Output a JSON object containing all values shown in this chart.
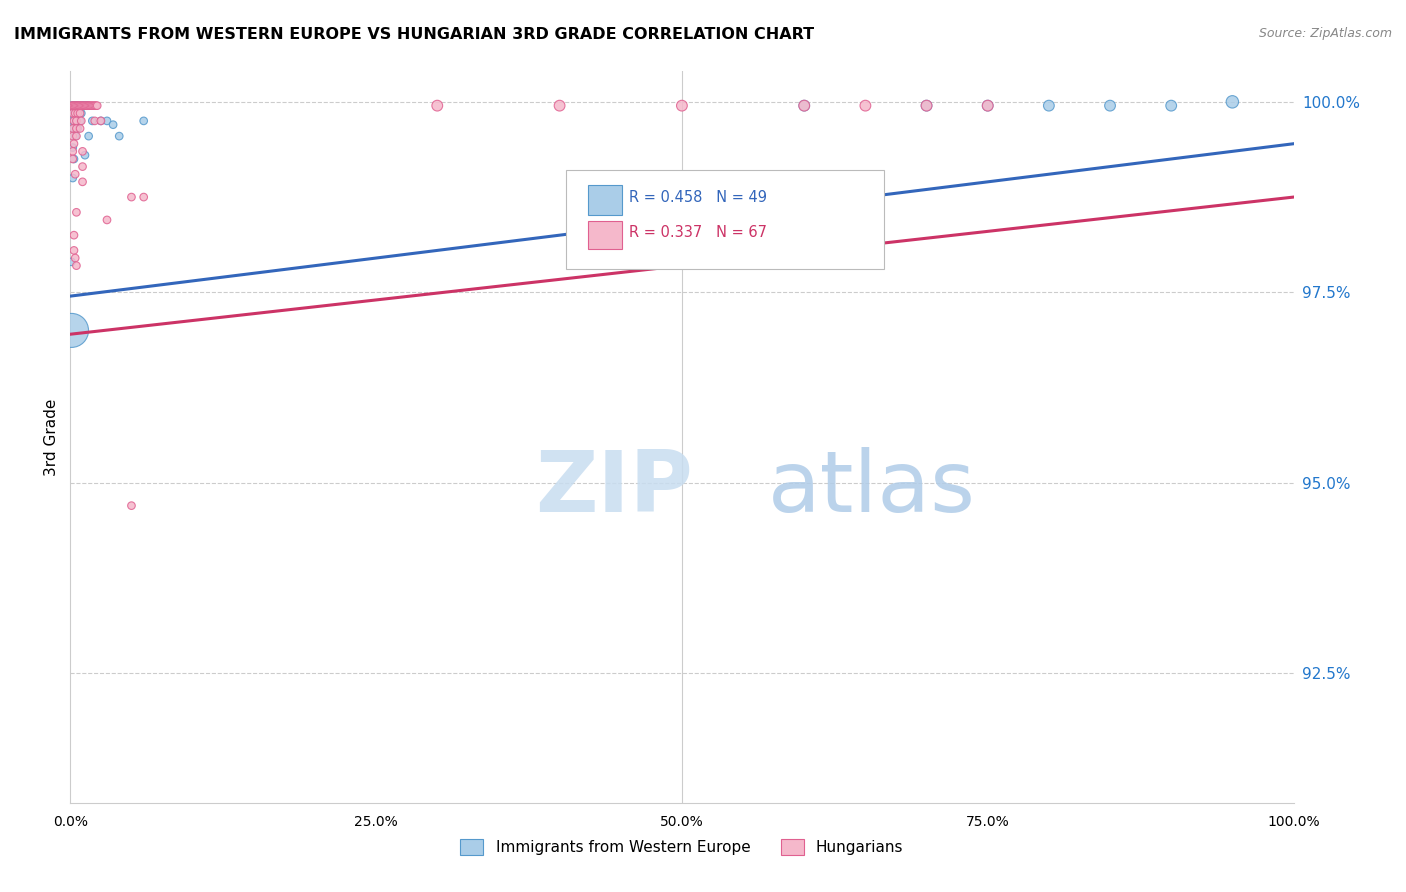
{
  "title": "IMMIGRANTS FROM WESTERN EUROPE VS HUNGARIAN 3RD GRADE CORRELATION CHART",
  "source": "Source: ZipAtlas.com",
  "ylabel": "3rd Grade",
  "ylabel_right_labels": [
    "100.0%",
    "97.5%",
    "95.0%",
    "92.5%"
  ],
  "ylabel_right_values": [
    1.0,
    0.975,
    0.95,
    0.925
  ],
  "xlim": [
    0.0,
    1.0
  ],
  "ylim": [
    0.908,
    1.004
  ],
  "blue_R": 0.458,
  "blue_N": 49,
  "pink_R": 0.337,
  "pink_N": 67,
  "blue_color": "#aacde8",
  "pink_color": "#f5b8cb",
  "blue_edge_color": "#5599cc",
  "pink_edge_color": "#e06090",
  "blue_line_color": "#3366bb",
  "pink_line_color": "#cc3366",
  "watermark_zip": "ZIP",
  "watermark_atlas": "atlas",
  "legend1": "Immigrants from Western Europe",
  "legend2": "Hungarians",
  "blue_line_x": [
    0.0,
    1.0
  ],
  "blue_line_y": [
    0.9745,
    0.9945
  ],
  "pink_line_x": [
    0.0,
    1.0
  ],
  "pink_line_y": [
    0.9695,
    0.9875
  ],
  "blue_scatter": [
    [
      0.001,
      0.9995
    ],
    [
      0.002,
      0.9995
    ],
    [
      0.003,
      0.9995
    ],
    [
      0.004,
      0.9995
    ],
    [
      0.005,
      0.9995
    ],
    [
      0.006,
      0.9995
    ],
    [
      0.007,
      0.9995
    ],
    [
      0.008,
      0.9995
    ],
    [
      0.009,
      0.9995
    ],
    [
      0.01,
      0.9995
    ],
    [
      0.011,
      0.9995
    ],
    [
      0.012,
      0.9995
    ],
    [
      0.013,
      0.9995
    ],
    [
      0.014,
      0.9995
    ],
    [
      0.015,
      0.9995
    ],
    [
      0.003,
      0.9985
    ],
    [
      0.005,
      0.9985
    ],
    [
      0.007,
      0.9985
    ],
    [
      0.009,
      0.9985
    ],
    [
      0.002,
      0.9975
    ],
    [
      0.005,
      0.9975
    ],
    [
      0.008,
      0.9975
    ],
    [
      0.003,
      0.9965
    ],
    [
      0.006,
      0.9965
    ],
    [
      0.004,
      0.9955
    ],
    [
      0.018,
      0.9975
    ],
    [
      0.025,
      0.9975
    ],
    [
      0.03,
      0.9975
    ],
    [
      0.035,
      0.997
    ],
    [
      0.06,
      0.9975
    ],
    [
      0.002,
      0.994
    ],
    [
      0.015,
      0.9955
    ],
    [
      0.04,
      0.9955
    ],
    [
      0.003,
      0.9925
    ],
    [
      0.012,
      0.993
    ],
    [
      0.002,
      0.99
    ],
    [
      0.6,
      0.9995
    ],
    [
      0.7,
      0.9995
    ],
    [
      0.75,
      0.9995
    ],
    [
      0.8,
      0.9995
    ],
    [
      0.85,
      0.9995
    ],
    [
      0.9,
      0.9995
    ],
    [
      0.95,
      1.0
    ],
    [
      0.001,
      0.979
    ],
    [
      0.001,
      0.97
    ]
  ],
  "blue_sizes": [
    30,
    30,
    30,
    30,
    30,
    30,
    30,
    30,
    30,
    30,
    30,
    30,
    30,
    30,
    30,
    30,
    30,
    30,
    30,
    30,
    30,
    30,
    30,
    30,
    30,
    30,
    30,
    30,
    30,
    30,
    30,
    30,
    30,
    30,
    30,
    30,
    60,
    60,
    60,
    60,
    60,
    60,
    80,
    30,
    600
  ],
  "pink_scatter": [
    [
      0.001,
      0.9995
    ],
    [
      0.002,
      0.9995
    ],
    [
      0.003,
      0.9995
    ],
    [
      0.004,
      0.9995
    ],
    [
      0.005,
      0.9995
    ],
    [
      0.006,
      0.9995
    ],
    [
      0.007,
      0.9995
    ],
    [
      0.008,
      0.9995
    ],
    [
      0.009,
      0.9995
    ],
    [
      0.01,
      0.9995
    ],
    [
      0.011,
      0.9995
    ],
    [
      0.012,
      0.9995
    ],
    [
      0.013,
      0.9995
    ],
    [
      0.014,
      0.9995
    ],
    [
      0.015,
      0.9995
    ],
    [
      0.016,
      0.9995
    ],
    [
      0.017,
      0.9995
    ],
    [
      0.018,
      0.9995
    ],
    [
      0.019,
      0.9995
    ],
    [
      0.02,
      0.9995
    ],
    [
      0.021,
      0.9995
    ],
    [
      0.022,
      0.9995
    ],
    [
      0.002,
      0.9985
    ],
    [
      0.004,
      0.9985
    ],
    [
      0.006,
      0.9985
    ],
    [
      0.008,
      0.9985
    ],
    [
      0.003,
      0.9975
    ],
    [
      0.005,
      0.9975
    ],
    [
      0.009,
      0.9975
    ],
    [
      0.02,
      0.9975
    ],
    [
      0.025,
      0.9975
    ],
    [
      0.002,
      0.9965
    ],
    [
      0.005,
      0.9965
    ],
    [
      0.008,
      0.9965
    ],
    [
      0.002,
      0.9955
    ],
    [
      0.005,
      0.9955
    ],
    [
      0.003,
      0.9945
    ],
    [
      0.002,
      0.9935
    ],
    [
      0.01,
      0.9935
    ],
    [
      0.002,
      0.9925
    ],
    [
      0.01,
      0.9915
    ],
    [
      0.004,
      0.9905
    ],
    [
      0.01,
      0.9895
    ],
    [
      0.05,
      0.9875
    ],
    [
      0.06,
      0.9875
    ],
    [
      0.005,
      0.9855
    ],
    [
      0.03,
      0.9845
    ],
    [
      0.003,
      0.9825
    ],
    [
      0.003,
      0.9805
    ],
    [
      0.004,
      0.9795
    ],
    [
      0.005,
      0.9785
    ],
    [
      0.3,
      0.9995
    ],
    [
      0.4,
      0.9995
    ],
    [
      0.5,
      0.9995
    ],
    [
      0.6,
      0.9995
    ],
    [
      0.65,
      0.9995
    ],
    [
      0.7,
      0.9995
    ],
    [
      0.75,
      0.9995
    ],
    [
      0.05,
      0.947
    ]
  ],
  "pink_sizes": [
    30,
    30,
    30,
    30,
    30,
    30,
    30,
    30,
    30,
    30,
    30,
    30,
    30,
    30,
    30,
    30,
    30,
    30,
    30,
    30,
    30,
    30,
    30,
    30,
    30,
    30,
    30,
    30,
    30,
    30,
    30,
    30,
    30,
    30,
    30,
    30,
    30,
    30,
    30,
    30,
    30,
    30,
    30,
    30,
    30,
    30,
    30,
    30,
    30,
    30,
    30,
    60,
    60,
    60,
    60,
    60,
    60,
    60,
    30
  ]
}
